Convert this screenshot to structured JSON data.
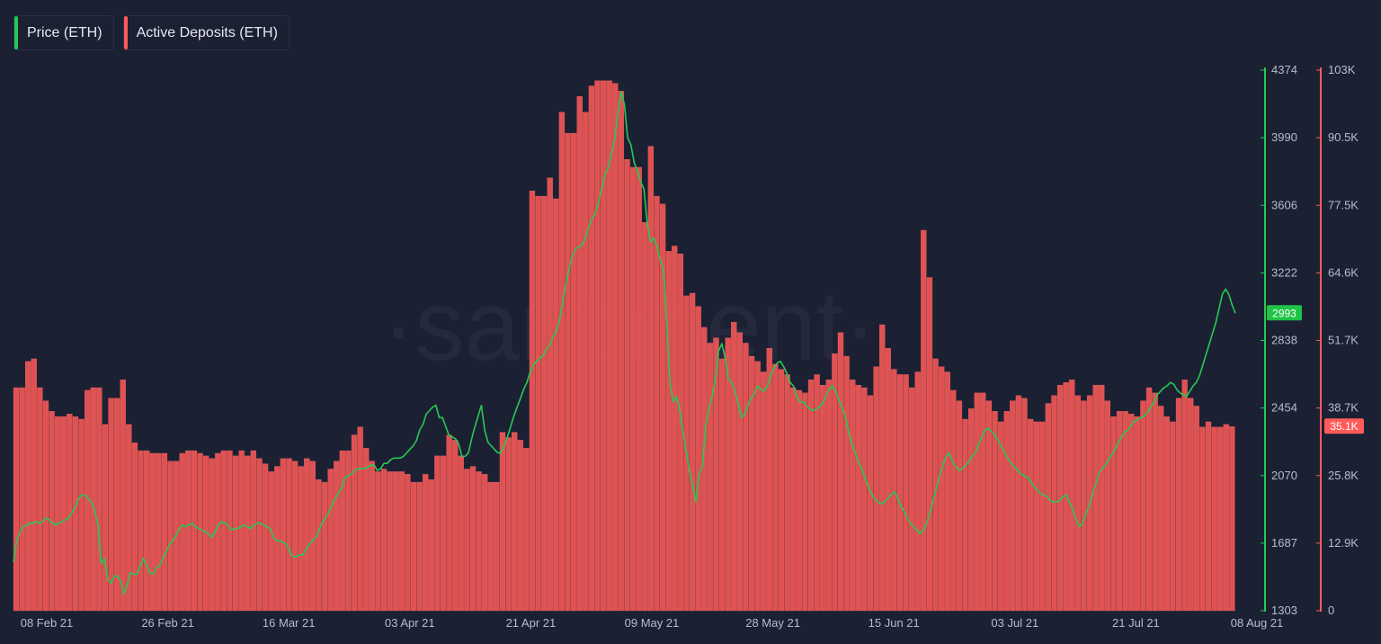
{
  "legend": {
    "price": {
      "label": "Price (ETH)",
      "color": "#26c953"
    },
    "deposits": {
      "label": "Active Deposits (ETH)",
      "color": "#ff5b5b"
    }
  },
  "watermark": "·santiment·",
  "chart_data": {
    "type": "bar+line",
    "x_ticks": [
      "08 Feb 21",
      "26 Feb 21",
      "16 Mar 21",
      "03 Apr 21",
      "21 Apr 21",
      "09 May 21",
      "28 May 21",
      "15 Jun 21",
      "03 Jul 21",
      "21 Jul 21",
      "08 Aug 21"
    ],
    "price_axis": {
      "ticks": [
        "4374",
        "3990",
        "3606",
        "3222",
        "2838",
        "2454",
        "2070",
        "1687",
        "1303"
      ],
      "ylim": [
        1303,
        4374
      ],
      "current": "2993",
      "color": "#26c953"
    },
    "deposits_axis": {
      "ticks": [
        "103K",
        "90.5K",
        "77.5K",
        "64.6K",
        "51.7K",
        "38.7K",
        "25.8K",
        "12.9K",
        "0"
      ],
      "ylim": [
        0,
        103000
      ],
      "current": "35.1K",
      "color": "#ff5b5b"
    },
    "series": [
      {
        "name": "Active Deposits (ETH)",
        "kind": "bar",
        "values": [
          42500,
          42500,
          47500,
          48000,
          42500,
          40000,
          38000,
          37000,
          37000,
          37500,
          37000,
          36500,
          42000,
          42500,
          42500,
          35500,
          40500,
          40500,
          44000,
          35500,
          32000,
          30500,
          30500,
          30000,
          30000,
          30000,
          28500,
          28500,
          30000,
          30500,
          30500,
          30000,
          29500,
          29000,
          30000,
          30500,
          30500,
          29500,
          30500,
          29500,
          30500,
          29000,
          28000,
          26500,
          27500,
          29000,
          29000,
          28500,
          27500,
          29000,
          28500,
          25000,
          24500,
          27000,
          28500,
          30500,
          30500,
          33500,
          35000,
          31000,
          28500,
          26500,
          27000,
          26500,
          26500,
          26500,
          26000,
          24500,
          24500,
          26000,
          25000,
          29500,
          29500,
          33500,
          32500,
          29500,
          27000,
          27500,
          26500,
          26000,
          24500,
          24500,
          34000,
          33000,
          34000,
          32500,
          31000,
          80000,
          79000,
          79000,
          82500,
          78500,
          95000,
          91000,
          91000,
          98000,
          95000,
          100000,
          101000,
          101000,
          101000,
          100500,
          99000,
          86000,
          84500,
          84500,
          74000,
          88500,
          79000,
          77500,
          68500,
          69500,
          68000,
          60000,
          60500,
          58000,
          54000,
          51000,
          52000,
          48000,
          52000,
          55000,
          53000,
          51000,
          48500,
          47500,
          45500,
          50000,
          47000,
          46000,
          45000,
          42500,
          42000,
          41500,
          44000,
          45000,
          43000,
          44000,
          49000,
          53000,
          48500,
          44000,
          43000,
          42500,
          41000,
          46500,
          54500,
          50000,
          46000,
          45000,
          45000,
          42500,
          45500,
          72500,
          63500,
          48000,
          46500,
          45500,
          42000,
          40000,
          36500,
          38500,
          41500,
          41500,
          40000,
          38000,
          36000,
          38000,
          40000,
          41000,
          40500,
          36500,
          36000,
          36000,
          39500,
          41000,
          43000,
          43500,
          44000,
          41000,
          40000,
          41000,
          43000,
          43000,
          40000,
          37000,
          38000,
          38000,
          37500,
          37000,
          40000,
          42500,
          41500,
          39000,
          37000,
          36000,
          40500,
          44000,
          40500,
          39000,
          35000,
          36000,
          35000,
          35000,
          35500,
          35100
        ]
      },
      {
        "name": "Price (ETH)",
        "kind": "line",
        "values": [
          1580,
          1700,
          1750,
          1780,
          1790,
          1800,
          1800,
          1810,
          1800,
          1810,
          1830,
          1820,
          1800,
          1790,
          1800,
          1810,
          1820,
          1830,
          1860,
          1890,
          1940,
          1960,
          1960,
          1940,
          1920,
          1870,
          1790,
          1570,
          1600,
          1480,
          1460,
          1500,
          1500,
          1470,
          1400,
          1450,
          1520,
          1510,
          1510,
          1560,
          1600,
          1560,
          1520,
          1510,
          1550,
          1560,
          1600,
          1640,
          1680,
          1700,
          1730,
          1770,
          1790,
          1780,
          1790,
          1800,
          1780,
          1770,
          1760,
          1750,
          1740,
          1720,
          1750,
          1790,
          1810,
          1800,
          1790,
          1760,
          1770,
          1770,
          1780,
          1790,
          1780,
          1770,
          1790,
          1800,
          1800,
          1790,
          1780,
          1770,
          1720,
          1700,
          1700,
          1690,
          1680,
          1640,
          1610,
          1610,
          1620,
          1620,
          1650,
          1680,
          1700,
          1720,
          1760,
          1800,
          1830,
          1860,
          1900,
          1940,
          1970,
          2000,
          2060,
          2070,
          2080,
          2100,
          2110,
          2110,
          2110,
          2120,
          2130,
          2130,
          2100,
          2110,
          2140,
          2140,
          2160,
          2170,
          2170,
          2170,
          2180,
          2200,
          2220,
          2240,
          2270,
          2330,
          2360,
          2420,
          2440,
          2460,
          2470,
          2400,
          2400,
          2350,
          2300,
          2290,
          2280,
          2250,
          2180,
          2180,
          2200,
          2280,
          2350,
          2410,
          2470,
          2330,
          2260,
          2240,
          2220,
          2200,
          2200,
          2240,
          2290,
          2350,
          2410,
          2460,
          2510,
          2560,
          2600,
          2660,
          2700,
          2720,
          2740,
          2750,
          2790,
          2810,
          2860,
          2890,
          2950,
          3060,
          3160,
          3250,
          3320,
          3360,
          3370,
          3380,
          3420,
          3480,
          3530,
          3560,
          3620,
          3700,
          3780,
          3820,
          3900,
          3980,
          4130,
          4250,
          4180,
          3990,
          3950,
          3850,
          3800,
          3740,
          3700,
          3510,
          3400,
          3420,
          3370,
          3300,
          3240,
          2950,
          2600,
          2490,
          2520,
          2450,
          2320,
          2210,
          2100,
          2020,
          1920,
          2080,
          2120,
          2350,
          2450,
          2520,
          2620,
          2780,
          2820,
          2740,
          2620,
          2600,
          2550,
          2480,
          2400,
          2420,
          2470,
          2510,
          2540,
          2580,
          2560,
          2550,
          2580,
          2640,
          2680,
          2710,
          2720,
          2690,
          2650,
          2600,
          2580,
          2520,
          2490,
          2490,
          2470,
          2450,
          2440,
          2450,
          2460,
          2480,
          2520,
          2560,
          2580,
          2550,
          2500,
          2460,
          2400,
          2320,
          2250,
          2200,
          2150,
          2110,
          2060,
          2010,
          1970,
          1940,
          1920,
          1910,
          1920,
          1940,
          1960,
          1980,
          1950,
          1900,
          1870,
          1830,
          1800,
          1780,
          1760,
          1740,
          1760,
          1800,
          1860,
          1930,
          2000,
          2070,
          2130,
          2180,
          2200,
          2150,
          2120,
          2100,
          2110,
          2130,
          2150,
          2180,
          2200,
          2250,
          2290,
          2330,
          2340,
          2320,
          2300,
          2270,
          2240,
          2200,
          2170,
          2140,
          2120,
          2100,
          2080,
          2070,
          2060,
          2040,
          2010,
          1990,
          1970,
          1960,
          1950,
          1930,
          1920,
          1920,
          1930,
          1950,
          1960,
          1920,
          1880,
          1820,
          1780,
          1800,
          1850,
          1900,
          1960,
          2020,
          2080,
          2110,
          2130,
          2160,
          2190,
          2220,
          2260,
          2290,
          2320,
          2330,
          2360,
          2380,
          2390,
          2400,
          2410,
          2430,
          2460,
          2490,
          2530,
          2550,
          2570,
          2580,
          2600,
          2590,
          2560,
          2540,
          2530,
          2520,
          2550,
          2580,
          2600,
          2640,
          2700,
          2760,
          2820,
          2880,
          2940,
          3020,
          3100,
          3130,
          3100,
          3040,
          2993
        ]
      }
    ]
  }
}
